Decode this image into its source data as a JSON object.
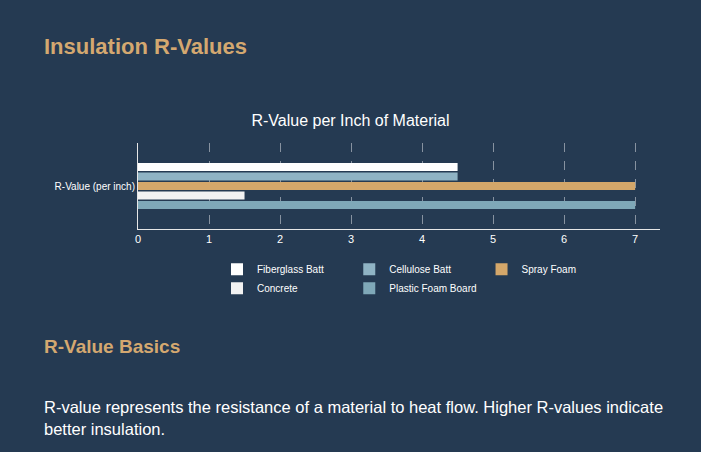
{
  "chart_data": {
    "type": "bar",
    "orientation": "horizontal",
    "title": "R-Value per Inch of Material",
    "categories": [
      "R-Value (per inch)"
    ],
    "series": [
      {
        "name": "Fiberglass Batt",
        "color": "#ffffff",
        "values": [
          4.5
        ]
      },
      {
        "name": "Cellulose Batt",
        "color": "#8fb3c4",
        "values": [
          4.5
        ]
      },
      {
        "name": "Spray Foam",
        "color": "#d4a76a",
        "values": [
          7
        ]
      },
      {
        "name": "Concrete",
        "color": "#f2f2f2",
        "values": [
          1.5
        ]
      },
      {
        "name": "Plastic Foam Board",
        "color": "#7fa8b8",
        "values": [
          7
        ]
      }
    ],
    "xlim": [
      0,
      7.35
    ],
    "xticks": [
      0,
      1,
      2,
      3,
      4,
      5,
      6,
      7
    ],
    "grid": true,
    "legend": "bottom"
  },
  "page": {
    "heading": "Insulation R-Values",
    "section_heading": "R-Value Basics",
    "paragraph": "R-value represents the resistance of a material to heat flow. Higher R-values indicate better insulation."
  }
}
